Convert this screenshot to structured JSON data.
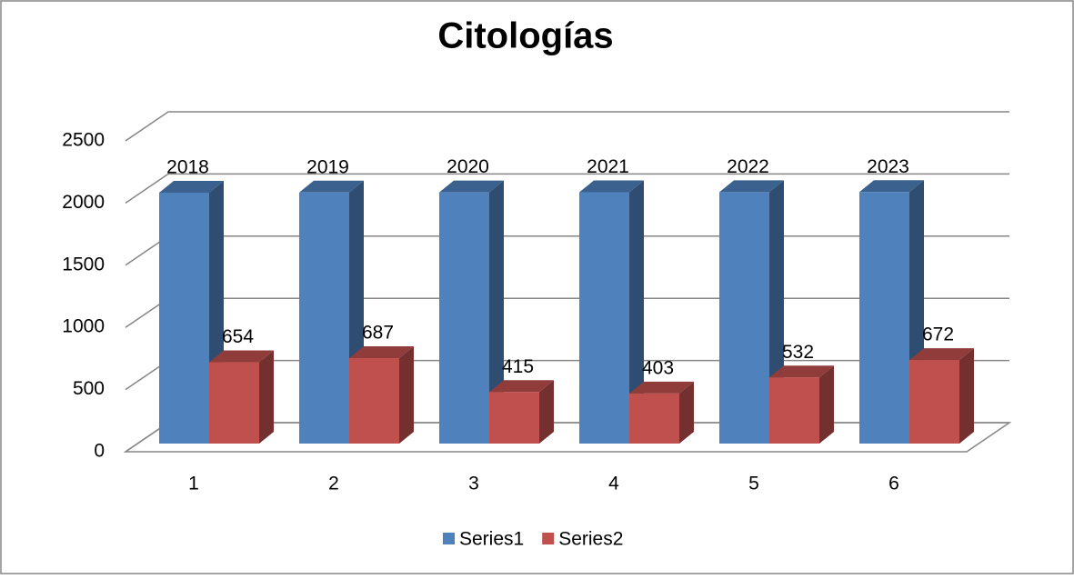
{
  "chart_data": {
    "type": "bar3d",
    "title": "Citologías",
    "categories": [
      "1",
      "2",
      "3",
      "4",
      "5",
      "6"
    ],
    "series": [
      {
        "name": "Series1",
        "color": "#4f81bd",
        "values": [
          2018,
          2019,
          2020,
          2021,
          2022,
          2023
        ]
      },
      {
        "name": "Series2",
        "color": "#c0504d",
        "values": [
          654,
          687,
          415,
          403,
          532,
          672
        ]
      }
    ],
    "ylim": [
      0,
      2500
    ],
    "yticks": [
      0,
      500,
      1000,
      1500,
      2000,
      2500
    ],
    "grid": true,
    "legend": "bottom"
  }
}
